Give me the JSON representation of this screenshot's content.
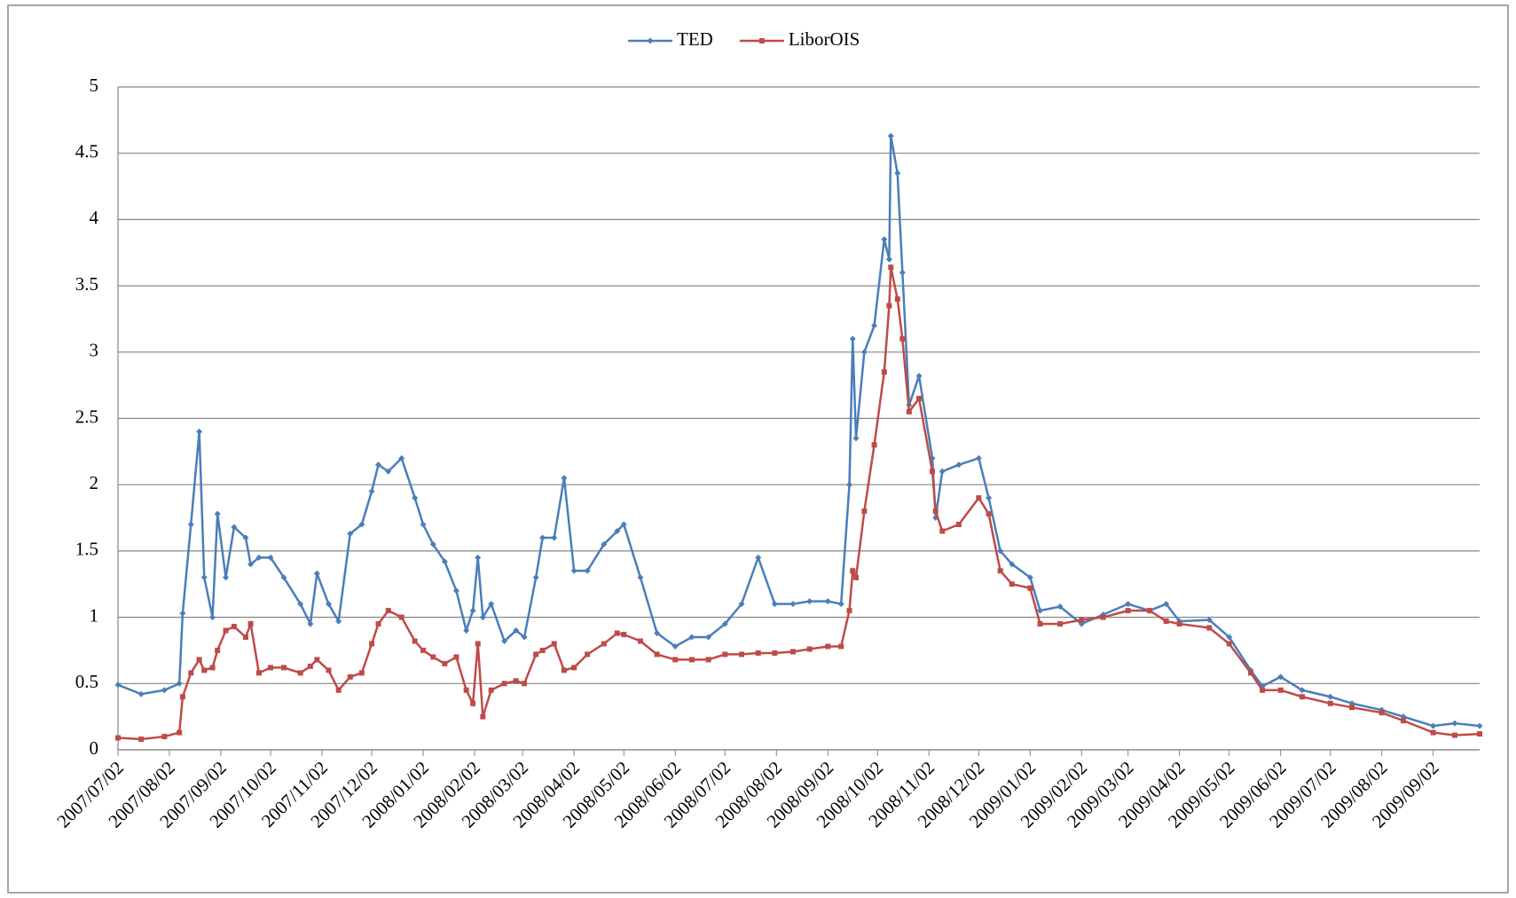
{
  "chart_data": {
    "type": "line",
    "x": [
      "2007/07/02",
      "2007/07/16",
      "2007/07/30",
      "2007/08/08",
      "2007/08/10",
      "2007/08/15",
      "2007/08/20",
      "2007/08/23",
      "2007/08/28",
      "2007/08/31",
      "2007/09/05",
      "2007/09/10",
      "2007/09/17",
      "2007/09/20",
      "2007/09/25",
      "2007/10/02",
      "2007/10/10",
      "2007/10/20",
      "2007/10/26",
      "2007/10/30",
      "2007/11/06",
      "2007/11/12",
      "2007/11/19",
      "2007/11/26",
      "2007/12/02",
      "2007/12/06",
      "2007/12/12",
      "2007/12/20",
      "2007/12/28",
      "2008/01/02",
      "2008/01/08",
      "2008/01/15",
      "2008/01/22",
      "2008/01/28",
      "2008/02/01",
      "2008/02/04",
      "2008/02/07",
      "2008/02/12",
      "2008/02/20",
      "2008/02/27",
      "2008/03/03",
      "2008/03/10",
      "2008/03/14",
      "2008/03/21",
      "2008/03/27",
      "2008/04/02",
      "2008/04/10",
      "2008/04/20",
      "2008/04/28",
      "2008/05/02",
      "2008/05/12",
      "2008/05/22",
      "2008/06/02",
      "2008/06/12",
      "2008/06/22",
      "2008/07/02",
      "2008/07/12",
      "2008/07/22",
      "2008/08/01",
      "2008/08/12",
      "2008/08/22",
      "2008/09/02",
      "2008/09/10",
      "2008/09/15",
      "2008/09/17",
      "2008/09/19",
      "2008/09/24",
      "2008/09/30",
      "2008/10/06",
      "2008/10/09",
      "2008/10/10",
      "2008/10/14",
      "2008/10/17",
      "2008/10/21",
      "2008/10/27",
      "2008/11/04",
      "2008/11/06",
      "2008/11/10",
      "2008/11/20",
      "2008/12/02",
      "2008/12/08",
      "2008/12/15",
      "2008/12/22",
      "2009/01/02",
      "2009/01/08",
      "2009/01/20",
      "2009/02/02",
      "2009/02/15",
      "2009/03/02",
      "2009/03/15",
      "2009/03/25",
      "2009/04/02",
      "2009/04/20",
      "2009/05/02",
      "2009/05/15",
      "2009/05/22",
      "2009/06/02",
      "2009/06/15",
      "2009/07/02",
      "2009/07/15",
      "2009/08/02",
      "2009/08/15",
      "2009/09/02",
      "2009/09/15",
      "2009/09/30"
    ],
    "series": [
      {
        "name": "TED",
        "color": "#4a7ebb",
        "marker": "diamond",
        "values": [
          0.49,
          0.42,
          0.45,
          0.5,
          1.03,
          1.7,
          2.4,
          1.3,
          1.0,
          1.78,
          1.3,
          1.68,
          1.6,
          1.4,
          1.45,
          1.45,
          1.3,
          1.1,
          0.95,
          1.33,
          1.1,
          0.97,
          1.63,
          1.7,
          1.95,
          2.15,
          2.1,
          2.2,
          1.9,
          1.7,
          1.55,
          1.42,
          1.2,
          0.9,
          1.05,
          1.45,
          1.0,
          1.1,
          0.82,
          0.9,
          0.85,
          1.3,
          1.6,
          1.6,
          2.05,
          1.35,
          1.35,
          1.55,
          1.65,
          1.7,
          1.3,
          0.88,
          0.78,
          0.85,
          0.85,
          0.95,
          1.1,
          1.45,
          1.1,
          1.1,
          1.12,
          1.12,
          1.1,
          2.0,
          3.1,
          2.35,
          3.0,
          3.2,
          3.85,
          3.7,
          4.63,
          4.35,
          3.6,
          2.6,
          2.82,
          2.2,
          1.75,
          2.1,
          2.15,
          2.2,
          1.9,
          1.5,
          1.4,
          1.3,
          1.05,
          1.08,
          0.95,
          1.02,
          1.1,
          1.05,
          1.1,
          0.97,
          0.98,
          0.85,
          0.6,
          0.48,
          0.55,
          0.45,
          0.4,
          0.35,
          0.3,
          0.25,
          0.18,
          0.2,
          0.18
        ]
      },
      {
        "name": "LiborOIS",
        "color": "#be4b48",
        "marker": "square",
        "values": [
          0.09,
          0.08,
          0.1,
          0.13,
          0.4,
          0.58,
          0.68,
          0.6,
          0.62,
          0.75,
          0.9,
          0.93,
          0.85,
          0.95,
          0.58,
          0.62,
          0.62,
          0.58,
          0.63,
          0.68,
          0.6,
          0.45,
          0.55,
          0.58,
          0.8,
          0.95,
          1.05,
          1.0,
          0.82,
          0.75,
          0.7,
          0.65,
          0.7,
          0.45,
          0.35,
          0.8,
          0.25,
          0.45,
          0.5,
          0.52,
          0.5,
          0.72,
          0.75,
          0.8,
          0.6,
          0.62,
          0.72,
          0.8,
          0.88,
          0.87,
          0.82,
          0.72,
          0.68,
          0.68,
          0.68,
          0.72,
          0.72,
          0.73,
          0.73,
          0.74,
          0.76,
          0.78,
          0.78,
          1.05,
          1.35,
          1.3,
          1.8,
          2.3,
          2.85,
          3.35,
          3.64,
          3.4,
          3.1,
          2.55,
          2.65,
          2.1,
          1.8,
          1.65,
          1.7,
          1.9,
          1.78,
          1.35,
          1.25,
          1.22,
          0.95,
          0.95,
          0.98,
          1.0,
          1.05,
          1.05,
          0.97,
          0.95,
          0.92,
          0.8,
          0.58,
          0.45,
          0.45,
          0.4,
          0.35,
          0.32,
          0.28,
          0.22,
          0.13,
          0.11,
          0.12
        ]
      }
    ],
    "xlim": [
      "2007/07/02",
      "2009/09/30"
    ],
    "xticks": [
      "2007/07/02",
      "2007/08/02",
      "2007/09/02",
      "2007/10/02",
      "2007/11/02",
      "2007/12/02",
      "2008/01/02",
      "2008/02/02",
      "2008/03/02",
      "2008/04/02",
      "2008/05/02",
      "2008/06/02",
      "2008/07/02",
      "2008/08/02",
      "2008/09/02",
      "2008/10/02",
      "2008/11/02",
      "2008/12/02",
      "2009/01/02",
      "2009/02/02",
      "2009/03/02",
      "2009/04/02",
      "2009/05/02",
      "2009/06/02",
      "2009/07/02",
      "2009/08/02",
      "2009/09/02"
    ],
    "ylim": [
      0,
      5
    ],
    "yticks": [
      0,
      0.5,
      1,
      1.5,
      2,
      2.5,
      3,
      3.5,
      4,
      4.5,
      5
    ],
    "grid": true,
    "legend": "top"
  }
}
